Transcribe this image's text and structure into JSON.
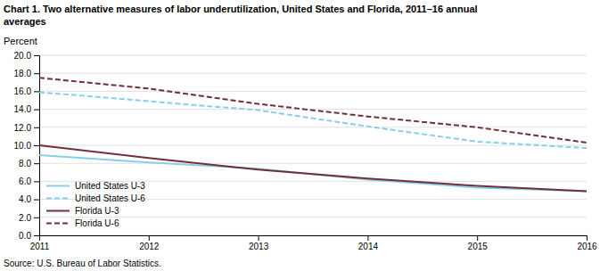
{
  "chart_data": {
    "type": "line",
    "title": "Chart 1. Two alternative measures of labor underutilization, United States and Florida, 2011–16  annual\naverages",
    "ylabel": "Percent",
    "annotations": [
      "Source: U.S. Bureau of Labor Statistics."
    ],
    "x": [
      2011,
      2012,
      2013,
      2014,
      2015,
      2016
    ],
    "xlim": [
      2011,
      2016
    ],
    "xticks": [
      2011,
      2012,
      2013,
      2014,
      2015,
      2016
    ],
    "ylim": [
      0.0,
      20.0
    ],
    "yticks": [
      {
        "value": 0.0,
        "label": "0.0"
      },
      {
        "value": 2.0,
        "label": "2.0"
      },
      {
        "value": 4.0,
        "label": "4.0"
      },
      {
        "value": 6.0,
        "label": "6.0"
      },
      {
        "value": 8.0,
        "label": "8.0"
      },
      {
        "value": 10.0,
        "label": "10.0"
      },
      {
        "value": 12.0,
        "label": "12.0"
      },
      {
        "value": 14.0,
        "label": "14.0"
      },
      {
        "value": 16.0,
        "label": "16.0"
      },
      {
        "value": 18.0,
        "label": "18.0"
      },
      {
        "value": 20.0,
        "label": "20.0"
      }
    ],
    "grid": true,
    "legend": "lower left",
    "series": [
      {
        "name": "United States  U-3",
        "color": "#87CEEB",
        "line_style": "solid",
        "values": [
          8.9,
          8.1,
          7.4,
          6.2,
          5.3,
          4.9
        ]
      },
      {
        "name": "United States  U-6",
        "color": "#87CEEB",
        "line_style": "dashed",
        "values": [
          15.9,
          14.9,
          13.9,
          12.1,
          10.4,
          9.7
        ]
      },
      {
        "name": "Florida  U-3",
        "color": "#722F37",
        "line_style": "solid",
        "values": [
          10.0,
          8.6,
          7.3,
          6.3,
          5.5,
          4.9
        ]
      },
      {
        "name": "Florida  U-6",
        "color": "#722F37",
        "line_style": "dashed",
        "values": [
          17.5,
          16.3,
          14.6,
          13.2,
          12.0,
          10.3
        ]
      }
    ]
  }
}
